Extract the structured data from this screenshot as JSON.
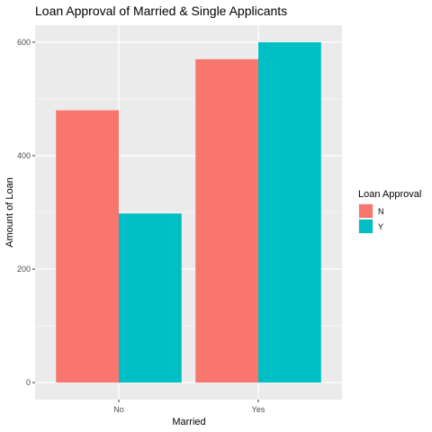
{
  "chart_data": {
    "type": "bar",
    "title": "Loan Approval of Married & Single Applicants",
    "xlabel": "Married",
    "ylabel": "Amount of Loan",
    "categories": [
      "No",
      "Yes"
    ],
    "series": [
      {
        "name": "N",
        "values": [
          480,
          570
        ],
        "color": "#F8766D"
      },
      {
        "name": "Y",
        "values": [
          298,
          600
        ],
        "color": "#00BFC4"
      }
    ],
    "ylim": [
      -30,
      630
    ],
    "yticks": [
      0,
      200,
      400,
      600
    ],
    "ytick_labels": [
      "0",
      "200",
      "400",
      "600"
    ],
    "grid": true,
    "legend": {
      "title": "Loan Approval",
      "position": "right"
    }
  }
}
